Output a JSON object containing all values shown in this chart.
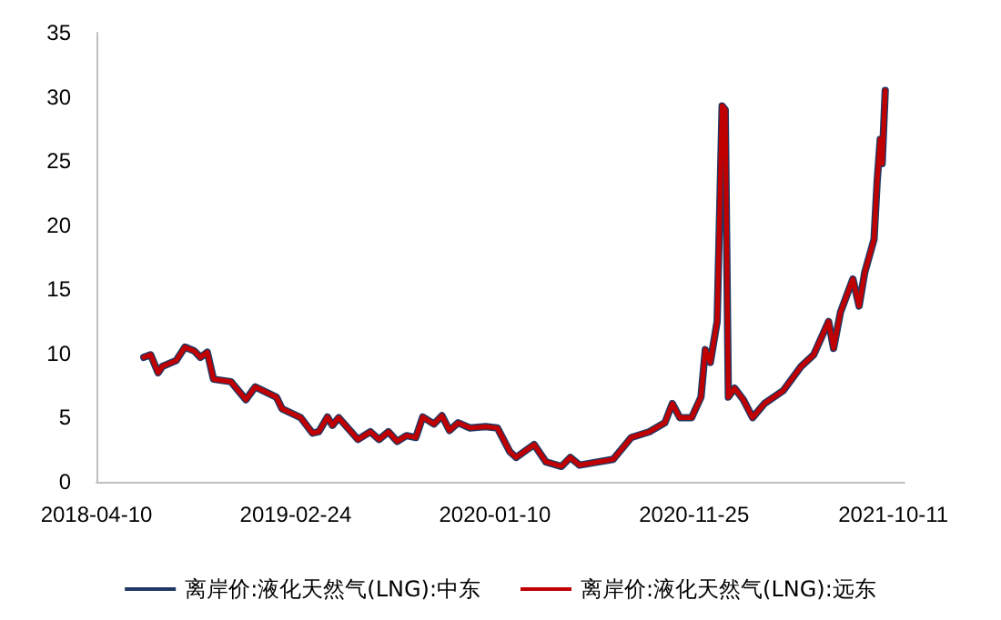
{
  "chart_data": {
    "type": "line",
    "x": [
      "2018-06-25",
      "2018-07-06",
      "2018-07-18",
      "2018-07-25",
      "2018-08-16",
      "2018-08-30",
      "2018-09-14",
      "2018-09-24",
      "2018-10-05",
      "2018-10-15",
      "2018-11-12",
      "2018-12-06",
      "2018-12-21",
      "2019-01-24",
      "2019-02-02",
      "2019-03-04",
      "2019-03-23",
      "2019-04-02",
      "2019-04-16",
      "2019-04-24",
      "2019-05-04",
      "2019-06-04",
      "2019-06-24",
      "2019-07-08",
      "2019-07-23",
      "2019-08-06",
      "2019-08-21",
      "2019-09-05",
      "2019-09-16",
      "2019-10-04",
      "2019-10-17",
      "2019-10-29",
      "2019-11-12",
      "2019-12-01",
      "2019-12-26",
      "2020-01-14",
      "2020-02-03",
      "2020-02-13",
      "2020-03-13",
      "2020-04-01",
      "2020-04-26",
      "2020-05-10",
      "2020-05-25",
      "2020-07-18",
      "2020-08-16",
      "2020-09-14",
      "2020-10-09",
      "2020-10-21",
      "2020-11-02",
      "2020-11-21",
      "2020-12-06",
      "2020-12-13",
      "2020-12-21",
      "2021-01-01",
      "2021-01-09",
      "2021-01-14",
      "2021-01-19",
      "2021-01-29",
      "2021-02-12",
      "2021-02-27",
      "2021-03-18",
      "2021-04-17",
      "2021-05-16",
      "2021-06-05",
      "2021-06-29",
      "2021-07-07",
      "2021-07-18",
      "2021-08-07",
      "2021-08-17",
      "2021-08-26",
      "2021-09-10",
      "2021-09-15",
      "2021-09-20",
      "2021-09-23",
      "2021-09-28"
    ],
    "series": [
      {
        "name": "离岸价:液化天然气(LNG):中东",
        "color": "#1f3864",
        "values": [
          9.7,
          9.9,
          8.5,
          9.0,
          9.45,
          10.5,
          10.2,
          9.7,
          10.1,
          8.0,
          7.8,
          6.4,
          7.4,
          6.6,
          5.7,
          5.0,
          3.8,
          3.9,
          5.05,
          4.4,
          5.0,
          3.3,
          3.9,
          3.3,
          3.9,
          3.15,
          3.6,
          3.45,
          5.05,
          4.5,
          5.15,
          4.0,
          4.6,
          4.2,
          4.3,
          4.2,
          2.35,
          1.9,
          2.9,
          1.55,
          1.2,
          1.9,
          1.3,
          1.75,
          3.45,
          3.9,
          4.6,
          6.1,
          5.0,
          5.0,
          6.6,
          10.3,
          9.3,
          12.5,
          29.3,
          29.0,
          6.6,
          7.3,
          6.4,
          5.0,
          6.1,
          7.1,
          9.0,
          9.9,
          12.5,
          10.4,
          13.2,
          15.8,
          13.7,
          16.3,
          18.9,
          23.4,
          26.7,
          24.8,
          30.5
        ]
      },
      {
        "name": "离岸价:液化天然气(LNG):远东",
        "color": "#c00000",
        "values": [
          9.7,
          9.9,
          8.5,
          9.0,
          9.45,
          10.5,
          10.2,
          9.7,
          10.1,
          8.0,
          7.8,
          6.4,
          7.4,
          6.6,
          5.7,
          5.0,
          3.8,
          3.9,
          5.05,
          4.4,
          5.0,
          3.3,
          3.9,
          3.3,
          3.9,
          3.15,
          3.6,
          3.45,
          5.05,
          4.5,
          5.15,
          4.0,
          4.6,
          4.2,
          4.3,
          4.2,
          2.35,
          1.9,
          2.9,
          1.55,
          1.2,
          1.9,
          1.3,
          1.75,
          3.45,
          3.9,
          4.6,
          6.1,
          5.0,
          5.0,
          6.6,
          10.3,
          9.3,
          12.5,
          29.3,
          29.0,
          6.6,
          7.3,
          6.4,
          5.0,
          6.1,
          7.1,
          9.0,
          9.9,
          12.5,
          10.4,
          13.2,
          15.8,
          13.7,
          16.3,
          18.9,
          23.4,
          26.7,
          24.8,
          30.5
        ]
      }
    ],
    "xlim": [
      "2018-04-10",
      "2021-10-29"
    ],
    "xticks": [
      "2018-04-10",
      "2019-02-24",
      "2020-01-10",
      "2020-11-25",
      "2021-10-11"
    ],
    "ylim": [
      0,
      35
    ],
    "yticks": [
      0,
      5,
      10,
      15,
      20,
      25,
      30,
      35
    ],
    "grid": false,
    "legend": "bottom",
    "marker": "none",
    "line_style": "solid"
  }
}
